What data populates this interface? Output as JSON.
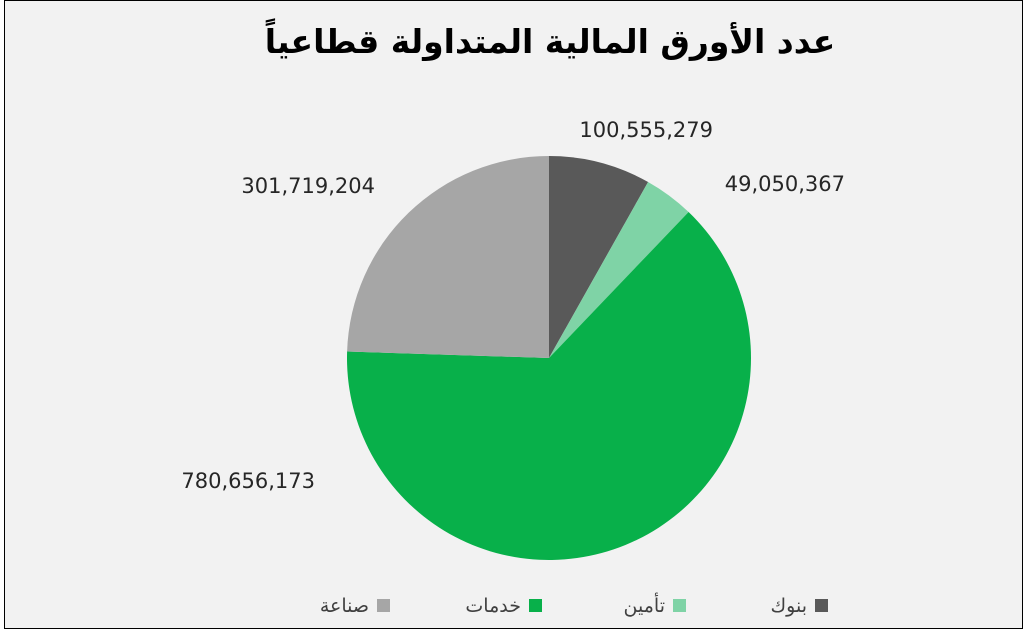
{
  "chart_data": {
    "type": "pie",
    "title": "عدد  الأورق المالية المتداولة قطاعياً",
    "categories": [
      "بنوك",
      "تأمين",
      "خدمات",
      "صناعة"
    ],
    "values": [
      100555279,
      49050367,
      780656173,
      301719204
    ],
    "data_labels": [
      "100,555,279",
      "49,050,367",
      "780,656,173",
      "301,719,204"
    ],
    "colors": [
      "#595959",
      "#7fd3a6",
      "#08b04a",
      "#a6a6a6"
    ],
    "legend_position": "bottom",
    "start_angle": "12 o'clock",
    "direction": "clockwise"
  }
}
